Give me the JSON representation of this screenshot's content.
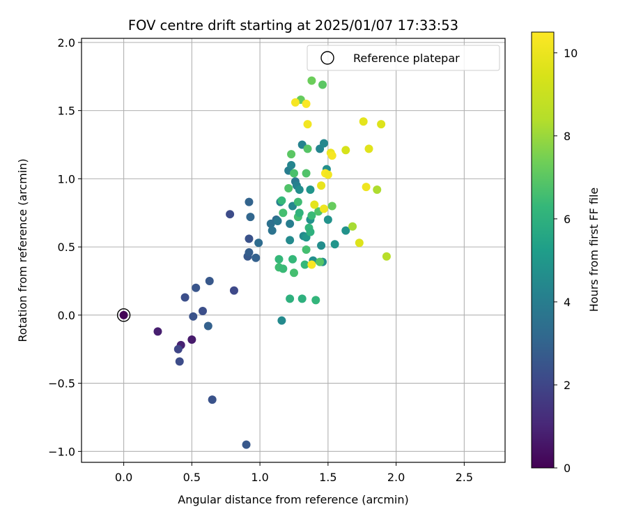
{
  "chart_data": {
    "type": "scatter",
    "title": "FOV centre drift starting at 2025/01/07 17:33:53",
    "xlabel": "Angular distance from reference (arcmin)",
    "ylabel": "Rotation from reference (arcmin)",
    "xlim": [
      -0.31,
      2.8
    ],
    "ylim": [
      -1.08,
      2.03
    ],
    "xticks": [
      0.0,
      0.5,
      1.0,
      1.5,
      2.0,
      2.5
    ],
    "xtick_labels": [
      "0.0",
      "0.5",
      "1.0",
      "1.5",
      "2.0",
      "2.5"
    ],
    "yticks": [
      -1.0,
      -0.5,
      0.0,
      0.5,
      1.0,
      1.5,
      2.0
    ],
    "ytick_labels": [
      "−1.0",
      "−0.5",
      "0.0",
      "0.5",
      "1.0",
      "1.5",
      "2.0"
    ],
    "grid": true,
    "legend": {
      "position": "top-right",
      "entries": [
        "Reference platepar"
      ]
    },
    "reference_point": {
      "x": 0.0,
      "y": 0.0,
      "label": "Reference platepar"
    },
    "colorbar": {
      "label": "Hours from first FF file",
      "range": [
        0,
        10.5
      ],
      "ticks": [
        0,
        2,
        4,
        6,
        8,
        10
      ],
      "tick_labels": [
        "0",
        "2",
        "4",
        "6",
        "8",
        "10"
      ],
      "colormap": "viridis"
    },
    "series": [
      {
        "points": [
          [
            0.0,
            0.0,
            0.1
          ],
          [
            0.25,
            -0.12,
            0.8
          ],
          [
            0.42,
            -0.22,
            0.9
          ],
          [
            0.5,
            -0.18,
            0.7
          ],
          [
            0.4,
            -0.25,
            2.0
          ],
          [
            0.41,
            -0.34,
            2.2
          ],
          [
            0.45,
            0.13,
            2.3
          ],
          [
            0.51,
            -0.01,
            2.4
          ],
          [
            0.53,
            0.2,
            2.5
          ],
          [
            0.58,
            0.03,
            2.3
          ],
          [
            0.63,
            0.25,
            2.6
          ],
          [
            0.62,
            -0.08,
            2.9
          ],
          [
            0.65,
            -0.62,
            2.4
          ],
          [
            0.78,
            0.74,
            2.2
          ],
          [
            0.81,
            0.18,
            2.1
          ],
          [
            0.9,
            -0.95,
            2.6
          ],
          [
            0.92,
            0.83,
            3.0
          ],
          [
            0.92,
            0.56,
            2.4
          ],
          [
            0.91,
            0.43,
            2.6
          ],
          [
            0.92,
            0.46,
            2.8
          ],
          [
            0.93,
            0.72,
            3.1
          ],
          [
            0.97,
            0.42,
            2.9
          ],
          [
            0.99,
            0.53,
            3.3
          ],
          [
            1.08,
            0.67,
            3.5
          ],
          [
            1.09,
            0.62,
            3.6
          ],
          [
            1.12,
            0.7,
            3.3
          ],
          [
            1.13,
            0.69,
            3.8
          ],
          [
            1.15,
            0.83,
            4.1
          ],
          [
            1.16,
            -0.04,
            4.5
          ],
          [
            1.21,
            1.06,
            4.0
          ],
          [
            1.22,
            0.67,
            4.0
          ],
          [
            1.22,
            0.55,
            4.5
          ],
          [
            1.23,
            1.1,
            4.3
          ],
          [
            1.24,
            0.8,
            4.4
          ],
          [
            1.26,
            0.98,
            3.8
          ],
          [
            1.27,
            0.95,
            4.1
          ],
          [
            1.29,
            0.92,
            4.6
          ],
          [
            1.31,
            1.25,
            4.2
          ],
          [
            1.32,
            0.58,
            4.5
          ],
          [
            1.34,
            0.57,
            5.0
          ],
          [
            1.37,
            0.92,
            4.9
          ],
          [
            1.37,
            0.7,
            4.8
          ],
          [
            1.39,
            0.4,
            4.7
          ],
          [
            1.44,
            1.22,
            4.3
          ],
          [
            1.45,
            0.51,
            4.6
          ],
          [
            1.46,
            0.39,
            4.7
          ],
          [
            1.47,
            1.26,
            4.4
          ],
          [
            1.49,
            1.07,
            4.7
          ],
          [
            1.5,
            0.7,
            4.8
          ],
          [
            1.55,
            0.52,
            4.9
          ],
          [
            1.63,
            0.62,
            4.8
          ],
          [
            1.14,
            0.41,
            6.3
          ],
          [
            1.14,
            0.35,
            6.5
          ],
          [
            1.16,
            0.84,
            6.3
          ],
          [
            1.17,
            0.75,
            6.6
          ],
          [
            1.17,
            0.34,
            6.4
          ],
          [
            1.21,
            0.93,
            6.8
          ],
          [
            1.22,
            0.12,
            6.0
          ],
          [
            1.23,
            1.18,
            7.0
          ],
          [
            1.24,
            0.41,
            6.3
          ],
          [
            1.25,
            0.31,
            6.6
          ],
          [
            1.25,
            1.04,
            6.7
          ],
          [
            1.28,
            0.83,
            6.5
          ],
          [
            1.28,
            0.72,
            6.6
          ],
          [
            1.29,
            0.75,
            6.1
          ],
          [
            1.3,
            1.58,
            7.2
          ],
          [
            1.31,
            0.12,
            6.0
          ],
          [
            1.33,
            0.37,
            6.3
          ],
          [
            1.34,
            0.48,
            6.6
          ],
          [
            1.34,
            1.04,
            6.8
          ],
          [
            1.35,
            1.22,
            6.9
          ],
          [
            1.36,
            0.64,
            6.2
          ],
          [
            1.37,
            0.61,
            6.0
          ],
          [
            1.38,
            0.73,
            6.4
          ],
          [
            1.38,
            1.72,
            7.3
          ],
          [
            1.41,
            0.11,
            6.2
          ],
          [
            1.43,
            0.76,
            6.8
          ],
          [
            1.44,
            0.39,
            6.9
          ],
          [
            1.46,
            1.69,
            7.0
          ],
          [
            1.53,
            0.8,
            7.2
          ],
          [
            1.68,
            0.65,
            8.2
          ],
          [
            1.86,
            0.92,
            8.3
          ],
          [
            1.93,
            0.43,
            8.5
          ],
          [
            1.26,
            1.56,
            10.3
          ],
          [
            1.34,
            1.55,
            10.4
          ],
          [
            1.35,
            1.4,
            10.2
          ],
          [
            1.38,
            0.37,
            10.4
          ],
          [
            1.4,
            0.81,
            9.8
          ],
          [
            1.45,
            0.95,
            9.9
          ],
          [
            1.47,
            0.78,
            10.1
          ],
          [
            1.48,
            1.04,
            10.4
          ],
          [
            1.5,
            1.03,
            10.2
          ],
          [
            1.52,
            1.19,
            10.0
          ],
          [
            1.53,
            1.17,
            10.3
          ],
          [
            1.63,
            1.21,
            9.4
          ],
          [
            1.73,
            0.53,
            9.6
          ],
          [
            1.76,
            1.42,
            9.8
          ],
          [
            1.78,
            0.94,
            10.1
          ],
          [
            1.8,
            1.22,
            9.7
          ],
          [
            1.89,
            1.4,
            9.6
          ]
        ]
      }
    ]
  }
}
